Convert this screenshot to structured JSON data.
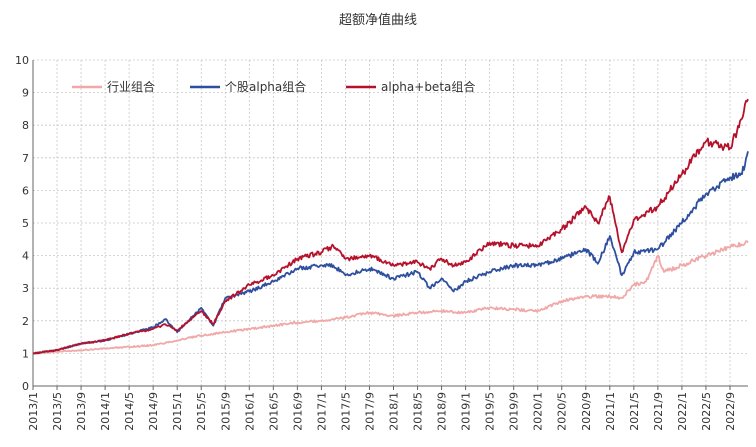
{
  "chart_data": {
    "type": "line",
    "title": "超额净值曲线",
    "xlabel": "",
    "ylabel": "",
    "ylim": [
      0,
      10
    ],
    "yticks": [
      0,
      1,
      2,
      3,
      4,
      5,
      6,
      7,
      8,
      9,
      10
    ],
    "grid": true,
    "legend_position": "top-left",
    "x_range": [
      "2013/1",
      "2022/12"
    ],
    "x_tick_labels": [
      "2013/1",
      "2013/5",
      "2013/9",
      "2014/1",
      "2014/5",
      "2014/9",
      "2015/1",
      "2015/5",
      "2015/9",
      "2016/1",
      "2016/5",
      "2016/9",
      "2017/1",
      "2017/5",
      "2017/9",
      "2018/1",
      "2018/5",
      "2018/9",
      "2019/1",
      "2019/5",
      "2019/9",
      "2020/1",
      "2020/5",
      "2020/9",
      "2021/1",
      "2021/5",
      "2021/9",
      "2022/1",
      "2022/5",
      "2022/9"
    ],
    "series": [
      {
        "name": "行业组合",
        "color": "#f0a8a8",
        "x": [
          "2013/1",
          "2013/5",
          "2013/9",
          "2014/1",
          "2014/5",
          "2014/9",
          "2015/1",
          "2015/5",
          "2015/9",
          "2016/1",
          "2016/5",
          "2016/9",
          "2017/1",
          "2017/5",
          "2017/9",
          "2018/1",
          "2018/5",
          "2018/9",
          "2019/1",
          "2019/5",
          "2019/9",
          "2020/1",
          "2020/5",
          "2020/9",
          "2021/1",
          "2021/3",
          "2021/5",
          "2021/7",
          "2021/9",
          "2021/10",
          "2022/1",
          "2022/5",
          "2022/9",
          "2022/12"
        ],
        "values": [
          1.0,
          1.05,
          1.1,
          1.15,
          1.2,
          1.25,
          1.4,
          1.55,
          1.65,
          1.75,
          1.85,
          1.95,
          2.0,
          2.1,
          2.25,
          2.15,
          2.25,
          2.3,
          2.25,
          2.4,
          2.35,
          2.3,
          2.6,
          2.75,
          2.75,
          2.7,
          3.1,
          3.2,
          4.0,
          3.5,
          3.7,
          4.0,
          4.25,
          4.4
        ]
      },
      {
        "name": "个股alpha组合",
        "color": "#2e4f9e",
        "x": [
          "2013/1",
          "2013/5",
          "2013/9",
          "2014/1",
          "2014/5",
          "2014/9",
          "2014/11",
          "2015/1",
          "2015/5",
          "2015/7",
          "2015/9",
          "2016/1",
          "2016/5",
          "2016/9",
          "2017/1",
          "2017/3",
          "2017/5",
          "2017/9",
          "2018/1",
          "2018/5",
          "2018/7",
          "2018/9",
          "2018/11",
          "2019/1",
          "2019/5",
          "2019/9",
          "2020/1",
          "2020/5",
          "2020/9",
          "2020/11",
          "2021/1",
          "2021/3",
          "2021/5",
          "2021/9",
          "2022/1",
          "2022/5",
          "2022/9",
          "2022/11",
          "2022/12"
        ],
        "values": [
          1.0,
          1.1,
          1.3,
          1.4,
          1.6,
          1.8,
          2.05,
          1.65,
          2.4,
          1.85,
          2.7,
          2.9,
          3.2,
          3.6,
          3.7,
          3.7,
          3.4,
          3.6,
          3.3,
          3.5,
          3.0,
          3.3,
          2.9,
          3.2,
          3.5,
          3.7,
          3.7,
          3.9,
          4.2,
          3.75,
          4.6,
          3.4,
          4.1,
          4.2,
          5.0,
          5.9,
          6.4,
          6.5,
          7.2
        ]
      },
      {
        "name": "alpha+beta组合",
        "color": "#b5112b",
        "x": [
          "2013/1",
          "2013/5",
          "2013/9",
          "2014/1",
          "2014/5",
          "2014/9",
          "2014/11",
          "2015/1",
          "2015/5",
          "2015/7",
          "2015/9",
          "2016/1",
          "2016/5",
          "2016/9",
          "2017/1",
          "2017/3",
          "2017/5",
          "2017/9",
          "2018/1",
          "2018/5",
          "2018/7",
          "2018/9",
          "2018/11",
          "2019/1",
          "2019/5",
          "2019/9",
          "2020/1",
          "2020/5",
          "2020/9",
          "2020/11",
          "2021/1",
          "2021/3",
          "2021/5",
          "2021/9",
          "2022/1",
          "2022/5",
          "2022/9",
          "2022/11",
          "2022/12"
        ],
        "values": [
          1.0,
          1.1,
          1.3,
          1.4,
          1.6,
          1.75,
          1.9,
          1.7,
          2.3,
          1.9,
          2.6,
          3.1,
          3.4,
          3.9,
          4.1,
          4.3,
          3.9,
          4.0,
          3.7,
          3.8,
          3.6,
          3.9,
          3.7,
          3.8,
          4.4,
          4.3,
          4.3,
          4.8,
          5.5,
          5.0,
          5.8,
          4.1,
          5.1,
          5.5,
          6.5,
          7.5,
          7.3,
          8.2,
          8.8
        ]
      }
    ]
  }
}
